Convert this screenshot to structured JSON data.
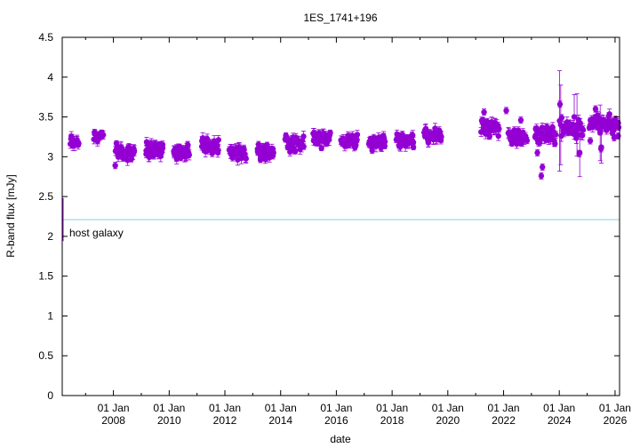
{
  "chart_data": {
    "type": "scatter",
    "title": "1ES_1741+196",
    "xlabel": "date",
    "ylabel": "R-band flux [mJy]",
    "xlim": [
      "2006-03-01",
      "2026-03-01"
    ],
    "ylim": [
      0,
      4.5
    ],
    "y_ticks": [
      "0",
      "0.5",
      "1",
      "1.5",
      "2",
      "2.5",
      "3",
      "3.5",
      "4",
      "4.5"
    ],
    "x_ticks": [
      {
        "date": "2008-01-01",
        "day": "01 Jan",
        "year": "2008"
      },
      {
        "date": "2010-01-01",
        "day": "01 Jan",
        "year": "2010"
      },
      {
        "date": "2012-01-01",
        "day": "01 Jan",
        "year": "2012"
      },
      {
        "date": "2014-01-01",
        "day": "01 Jan",
        "year": "2014"
      },
      {
        "date": "2016-01-01",
        "day": "01 Jan",
        "year": "2016"
      },
      {
        "date": "2018-01-01",
        "day": "01 Jan",
        "year": "2018"
      },
      {
        "date": "2020-01-01",
        "day": "01 Jan",
        "year": "2020"
      },
      {
        "date": "2022-01-01",
        "day": "01 Jan",
        "year": "2022"
      },
      {
        "date": "2024-01-01",
        "day": "01 Jan",
        "year": "2024"
      },
      {
        "date": "2026-01-01",
        "day": "01 Jan",
        "year": "2026"
      }
    ],
    "host_galaxy": {
      "label": "host galaxy",
      "flux": 2.21,
      "error": 0.27,
      "error_date": "2006-03-01",
      "color": "#87ceeb"
    },
    "point_color": "#9400d3",
    "seasons": [
      {
        "start": "2006-06-15",
        "end": "2006-10-01",
        "base": 3.18,
        "amp": 0.05,
        "n": 16
      },
      {
        "start": "2007-04-20",
        "end": "2007-08-20",
        "base": 3.26,
        "amp": 0.05,
        "n": 16
      },
      {
        "start": "2008-02-01",
        "end": "2008-10-01",
        "base": 3.06,
        "amp": 0.08,
        "n": 40
      },
      {
        "start": "2009-03-01",
        "end": "2009-10-10",
        "base": 3.09,
        "amp": 0.06,
        "n": 38
      },
      {
        "start": "2010-03-01",
        "end": "2010-09-20",
        "base": 3.07,
        "amp": 0.06,
        "n": 34
      },
      {
        "start": "2011-03-01",
        "end": "2011-10-10",
        "base": 3.13,
        "amp": 0.07,
        "n": 38
      },
      {
        "start": "2012-03-01",
        "end": "2012-10-01",
        "base": 3.05,
        "amp": 0.05,
        "n": 34
      },
      {
        "start": "2013-03-01",
        "end": "2013-10-01",
        "base": 3.06,
        "amp": 0.07,
        "n": 34
      },
      {
        "start": "2014-03-01",
        "end": "2014-11-01",
        "base": 3.17,
        "amp": 0.09,
        "n": 32
      },
      {
        "start": "2015-03-01",
        "end": "2015-10-10",
        "base": 3.22,
        "amp": 0.08,
        "n": 32
      },
      {
        "start": "2016-03-01",
        "end": "2016-10-01",
        "base": 3.19,
        "amp": 0.06,
        "n": 30
      },
      {
        "start": "2017-03-01",
        "end": "2017-10-01",
        "base": 3.17,
        "amp": 0.06,
        "n": 34
      },
      {
        "start": "2018-03-01",
        "end": "2018-10-10",
        "base": 3.21,
        "amp": 0.06,
        "n": 34
      },
      {
        "start": "2019-03-01",
        "end": "2019-10-10",
        "base": 3.27,
        "amp": 0.06,
        "n": 34
      },
      {
        "start": "2021-03-15",
        "end": "2021-11-01",
        "base": 3.36,
        "amp": 0.07,
        "n": 36
      },
      {
        "start": "2022-03-01",
        "end": "2022-11-01",
        "base": 3.25,
        "amp": 0.06,
        "n": 36
      },
      {
        "start": "2023-02-15",
        "end": "2023-11-15",
        "base": 3.27,
        "amp": 0.07,
        "n": 36
      },
      {
        "start": "2024-02-01",
        "end": "2024-11-10",
        "base": 3.35,
        "amp": 0.09,
        "n": 36
      },
      {
        "start": "2025-02-01",
        "end": "2026-02-15",
        "base": 3.42,
        "amp": 0.09,
        "n": 44
      }
    ],
    "notable_points": [
      {
        "date": "2008-01-25",
        "flux": 2.89
      },
      {
        "date": "2021-04-20",
        "flux": 3.56
      },
      {
        "date": "2022-02-05",
        "flux": 3.58
      },
      {
        "date": "2022-08-15",
        "flux": 3.46
      },
      {
        "date": "2023-03-20",
        "flux": 3.05
      },
      {
        "date": "2023-05-10",
        "flux": 2.76
      },
      {
        "date": "2023-05-25",
        "flux": 2.87
      },
      {
        "date": "2024-01-10",
        "flux": 3.66
      },
      {
        "date": "2024-02-01",
        "flux": 3.49
      },
      {
        "date": "2024-09-20",
        "flux": 3.04
      },
      {
        "date": "2025-02-10",
        "flux": 3.2
      },
      {
        "date": "2025-04-20",
        "flux": 3.6
      },
      {
        "date": "2025-07-01",
        "flux": 3.1
      },
      {
        "date": "2025-12-20",
        "flux": 3.24
      },
      {
        "date": "2026-02-10",
        "flux": 3.26
      }
    ],
    "error_bar_points": [
      {
        "date": "2024-01-05",
        "flux": 3.45,
        "error": 0.63
      },
      {
        "date": "2024-01-20",
        "flux": 3.4,
        "error": 0.5
      },
      {
        "date": "2024-07-15",
        "flux": 3.5,
        "error": 0.28
      },
      {
        "date": "2024-08-20",
        "flux": 3.4,
        "error": 0.39
      },
      {
        "date": "2024-09-25",
        "flux": 3.05,
        "error": 0.3
      },
      {
        "date": "2025-06-20",
        "flux": 3.3,
        "error": 0.35
      },
      {
        "date": "2025-07-05",
        "flux": 3.12,
        "error": 0.2
      }
    ],
    "grid": false,
    "legend": "none"
  }
}
